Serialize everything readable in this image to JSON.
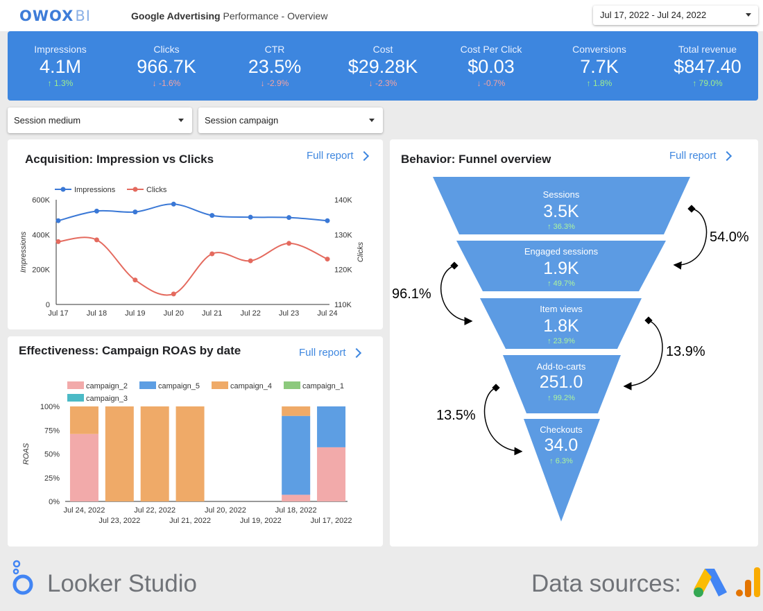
{
  "header": {
    "logo_main": "OWOX",
    "logo_sub": "BI",
    "title_bold": "Google Advertising",
    "title_rest": " Performance - Overview",
    "date_range": "Jul 17, 2022 - Jul 24, 2022"
  },
  "kpis": [
    {
      "label": "Impressions",
      "value": "4.1M",
      "delta": "1.3%",
      "dir": "up"
    },
    {
      "label": "Clicks",
      "value": "966.7K",
      "delta": "-1.6%",
      "dir": "down"
    },
    {
      "label": "CTR",
      "value": "23.5%",
      "delta": "-2.9%",
      "dir": "down"
    },
    {
      "label": "Cost",
      "value": "$29.28K",
      "delta": "-2.3%",
      "dir": "down"
    },
    {
      "label": "Cost Per Click",
      "value": "$0.03",
      "delta": "-0.7%",
      "dir": "down"
    },
    {
      "label": "Conversions",
      "value": "7.7K",
      "delta": "1.8%",
      "dir": "up"
    },
    {
      "label": "Total revenue",
      "value": "$847.40",
      "delta": "79.0%",
      "dir": "up"
    }
  ],
  "filters": {
    "medium": "Session medium",
    "campaign": "Session campaign"
  },
  "acquisition": {
    "title": "Acquisition: Impression vs Clicks",
    "full_report": "Full report"
  },
  "effectiveness": {
    "title": "Effectiveness: Campaign ROAS by date",
    "full_report": "Full report"
  },
  "behavior": {
    "title": "Behavior: Funnel overview",
    "full_report": "Full report",
    "stages": [
      {
        "label": "Sessions",
        "value": "3.5K",
        "delta": "36.3%"
      },
      {
        "label": "Engaged sessions",
        "value": "1.9K",
        "delta": "49.7%"
      },
      {
        "label": "Item views",
        "value": "1.8K",
        "delta": "23.9%"
      },
      {
        "label": "Add-to-carts",
        "value": "251.0",
        "delta": "99.2%"
      },
      {
        "label": "Checkouts",
        "value": "34.0",
        "delta": "6.3%"
      }
    ],
    "rates": [
      "54.0%",
      "96.1%",
      "13.9%",
      "13.5%"
    ]
  },
  "footer": {
    "brand": "Looker Studio",
    "sources_label": "Data sources:"
  },
  "icons": {
    "up_arrow": "↑",
    "down_arrow": "↓"
  },
  "colors": {
    "accent": "#3d86df",
    "up": "#9ff08f",
    "down": "#f4a4a4",
    "impressions": "#3a78d6",
    "clicks": "#e46a5e"
  },
  "chart_data": [
    {
      "type": "line",
      "x": [
        "Jul 17",
        "Jul 18",
        "Jul 19",
        "Jul 20",
        "Jul 21",
        "Jul 22",
        "Jul 23",
        "Jul 24"
      ],
      "series": [
        {
          "name": "Impressions",
          "axis": "left",
          "values": [
            480000,
            535000,
            530000,
            575000,
            510000,
            500000,
            498000,
            480000
          ]
        },
        {
          "name": "Clicks",
          "axis": "right",
          "values": [
            128000,
            128500,
            117000,
            113000,
            124500,
            122500,
            127500,
            123000
          ]
        }
      ],
      "ylabel": "Impressions",
      "ylabel_right": "Clicks",
      "ylim": [
        0,
        600000
      ],
      "ylim_right": [
        110000,
        140000
      ],
      "yticks": [
        "0",
        "200K",
        "400K",
        "600K"
      ],
      "yticks_right": [
        "110K",
        "120K",
        "130K",
        "140K"
      ],
      "legend": "top-left",
      "grid": false
    },
    {
      "type": "bar",
      "stacked": true,
      "categories": [
        "Jul 24, 2022",
        "Jul 23, 2022",
        "Jul 22, 2022",
        "Jul 21, 2022",
        "Jul 20, 2022",
        "Jul 19, 2022",
        "Jul 18, 2022",
        "Jul 17, 2022"
      ],
      "series": [
        {
          "name": "campaign_2",
          "color": "#f2aaaa",
          "values": [
            71,
            0,
            0,
            0,
            0,
            0,
            7,
            57
          ]
        },
        {
          "name": "campaign_5",
          "color": "#5d9ee3",
          "values": [
            0,
            0,
            0,
            0,
            0,
            0,
            83,
            43
          ]
        },
        {
          "name": "campaign_4",
          "color": "#efaa68",
          "values": [
            29,
            100,
            100,
            100,
            0,
            0,
            10,
            0
          ]
        },
        {
          "name": "campaign_1",
          "color": "#8cc97c",
          "values": [
            0,
            0,
            0,
            0,
            0,
            0,
            0,
            0
          ]
        },
        {
          "name": "campaign_3",
          "color": "#4bbac6",
          "values": [
            0,
            0,
            0,
            0,
            0,
            0,
            0,
            0
          ]
        }
      ],
      "ylabel": "ROAS",
      "yticks": [
        "0%",
        "25%",
        "50%",
        "75%",
        "100%"
      ],
      "ylim": [
        0,
        100
      ],
      "legend": "top"
    }
  ]
}
